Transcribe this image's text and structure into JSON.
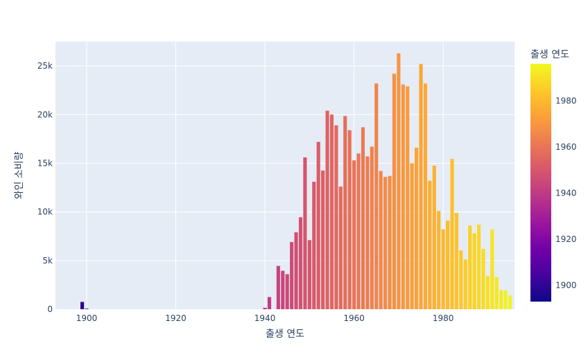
{
  "chart_data": {
    "type": "bar",
    "title": "",
    "xlabel": "출생 연도",
    "ylabel": "와인 소비량",
    "xlim": [
      1893,
      1996
    ],
    "ylim": [
      0,
      27500
    ],
    "x_ticks": [
      1900,
      1920,
      1940,
      1960,
      1980
    ],
    "x_tick_labels": [
      "1900",
      "1920",
      "1940",
      "1960",
      "1980"
    ],
    "y_ticks": [
      0,
      5000,
      10000,
      15000,
      20000,
      25000
    ],
    "y_tick_labels": [
      "0",
      "5k",
      "10k",
      "15k",
      "20k",
      "25k"
    ],
    "colorbar": {
      "title": "출생 연도",
      "range": [
        1893,
        1996
      ],
      "ticks": [
        1900,
        1920,
        1940,
        1960,
        1980
      ],
      "tick_labels": [
        "1900",
        "1920",
        "1940",
        "1960",
        "1980"
      ],
      "colorscale": [
        "#0d0887",
        "#46039f",
        "#7201a8",
        "#9c179e",
        "#bd3786",
        "#d8576b",
        "#ed7953",
        "#fb9f3a",
        "#fdca26",
        "#f0f921"
      ]
    },
    "grid": true,
    "background": "#e5ecf6",
    "series": [
      {
        "x": [
          1899,
          1900,
          1940,
          1941,
          1943,
          1944,
          1945,
          1946,
          1947,
          1948,
          1949,
          1950,
          1951,
          1952,
          1953,
          1954,
          1955,
          1956,
          1957,
          1958,
          1959,
          1960,
          1961,
          1962,
          1963,
          1964,
          1965,
          1966,
          1967,
          1968,
          1969,
          1970,
          1971,
          1972,
          1973,
          1974,
          1975,
          1976,
          1977,
          1978,
          1979,
          1980,
          1981,
          1982,
          1983,
          1984,
          1985,
          1986,
          1987,
          1988,
          1989,
          1990,
          1991,
          1992,
          1993,
          1994,
          1995
        ],
        "values": [
          750,
          60,
          150,
          1250,
          4450,
          3950,
          3600,
          6900,
          7900,
          9450,
          15600,
          7100,
          13100,
          17200,
          14250,
          20400,
          20000,
          18900,
          12600,
          19850,
          18400,
          15300,
          16000,
          18700,
          15700,
          16700,
          23200,
          14200,
          13600,
          13700,
          24200,
          26300,
          23100,
          22900,
          15000,
          16600,
          25200,
          23200,
          13200,
          14750,
          10100,
          8200,
          9100,
          15450,
          9900,
          6050,
          5100,
          8600,
          7800,
          8700,
          6200,
          3400,
          8200,
          3300,
          1950,
          1950,
          1400
        ]
      }
    ]
  }
}
